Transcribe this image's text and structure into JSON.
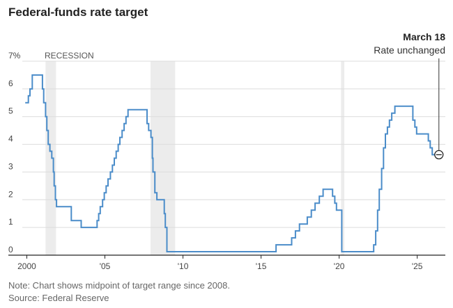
{
  "chart_data": {
    "type": "line",
    "title": "Federal-funds rate target",
    "xlabel": "",
    "ylabel": "",
    "xlim": [
      1999.8,
      2026.8
    ],
    "ylim": [
      0,
      7
    ],
    "x_ticks": [
      2000,
      2005,
      2010,
      2015,
      2020,
      2025
    ],
    "x_tick_labels": [
      "2000",
      "'05",
      "'10",
      "'15",
      "'20",
      "'25"
    ],
    "y_ticks": [
      0,
      1,
      2,
      3,
      4,
      5,
      6,
      7
    ],
    "y_tick_labels": [
      "0",
      "1",
      "2",
      "3",
      "4",
      "5",
      "6",
      "7%"
    ],
    "grid": "horizontal",
    "line_color": "#4a8cc9",
    "recession_color": "#ececec",
    "recession_label": "RECESSION",
    "recessions": [
      [
        2001.2,
        2001.87
      ],
      [
        2007.92,
        2009.5
      ],
      [
        2020.12,
        2020.33
      ]
    ],
    "annotation": {
      "date": "March 18",
      "text": "Rate unchanged",
      "x": 2026.21,
      "y": 3.625
    },
    "series": [
      {
        "points": [
          [
            1999.9,
            5.5
          ],
          [
            2000.1,
            5.5
          ],
          [
            2000.1,
            5.75
          ],
          [
            2000.2,
            5.75
          ],
          [
            2000.2,
            6.0
          ],
          [
            2000.35,
            6.0
          ],
          [
            2000.35,
            6.5
          ],
          [
            2001.0,
            6.5
          ],
          [
            2001.0,
            6.0
          ],
          [
            2001.08,
            6.0
          ],
          [
            2001.08,
            5.5
          ],
          [
            2001.2,
            5.5
          ],
          [
            2001.2,
            5.0
          ],
          [
            2001.28,
            5.0
          ],
          [
            2001.28,
            4.5
          ],
          [
            2001.37,
            4.5
          ],
          [
            2001.37,
            4.0
          ],
          [
            2001.48,
            4.0
          ],
          [
            2001.48,
            3.75
          ],
          [
            2001.6,
            3.75
          ],
          [
            2001.6,
            3.5
          ],
          [
            2001.7,
            3.5
          ],
          [
            2001.7,
            3.0
          ],
          [
            2001.75,
            3.0
          ],
          [
            2001.75,
            2.5
          ],
          [
            2001.83,
            2.5
          ],
          [
            2001.83,
            2.0
          ],
          [
            2001.9,
            2.0
          ],
          [
            2001.9,
            1.75
          ],
          [
            2002.85,
            1.75
          ],
          [
            2002.85,
            1.25
          ],
          [
            2003.48,
            1.25
          ],
          [
            2003.48,
            1.0
          ],
          [
            2004.5,
            1.0
          ],
          [
            2004.5,
            1.25
          ],
          [
            2004.6,
            1.25
          ],
          [
            2004.6,
            1.5
          ],
          [
            2004.7,
            1.5
          ],
          [
            2004.7,
            1.75
          ],
          [
            2004.85,
            1.75
          ],
          [
            2004.85,
            2.0
          ],
          [
            2004.96,
            2.0
          ],
          [
            2004.96,
            2.25
          ],
          [
            2005.08,
            2.25
          ],
          [
            2005.08,
            2.5
          ],
          [
            2005.2,
            2.5
          ],
          [
            2005.2,
            2.75
          ],
          [
            2005.35,
            2.75
          ],
          [
            2005.35,
            3.0
          ],
          [
            2005.48,
            3.0
          ],
          [
            2005.48,
            3.25
          ],
          [
            2005.6,
            3.25
          ],
          [
            2005.6,
            3.5
          ],
          [
            2005.72,
            3.5
          ],
          [
            2005.72,
            3.75
          ],
          [
            2005.85,
            3.75
          ],
          [
            2005.85,
            4.0
          ],
          [
            2005.96,
            4.0
          ],
          [
            2005.96,
            4.25
          ],
          [
            2006.1,
            4.25
          ],
          [
            2006.1,
            4.5
          ],
          [
            2006.23,
            4.5
          ],
          [
            2006.23,
            4.75
          ],
          [
            2006.35,
            4.75
          ],
          [
            2006.35,
            5.0
          ],
          [
            2006.48,
            5.0
          ],
          [
            2006.48,
            5.25
          ],
          [
            2007.7,
            5.25
          ],
          [
            2007.7,
            4.75
          ],
          [
            2007.8,
            4.75
          ],
          [
            2007.8,
            4.5
          ],
          [
            2007.95,
            4.5
          ],
          [
            2007.95,
            4.25
          ],
          [
            2008.04,
            4.25
          ],
          [
            2008.04,
            3.5
          ],
          [
            2008.08,
            3.5
          ],
          [
            2008.08,
            3.0
          ],
          [
            2008.2,
            3.0
          ],
          [
            2008.2,
            2.25
          ],
          [
            2008.33,
            2.25
          ],
          [
            2008.33,
            2.0
          ],
          [
            2008.8,
            2.0
          ],
          [
            2008.8,
            1.5
          ],
          [
            2008.87,
            1.5
          ],
          [
            2008.87,
            1.0
          ],
          [
            2008.97,
            1.0
          ],
          [
            2008.97,
            0.125
          ],
          [
            2015.96,
            0.125
          ],
          [
            2015.96,
            0.375
          ],
          [
            2016.96,
            0.375
          ],
          [
            2016.96,
            0.625
          ],
          [
            2017.2,
            0.625
          ],
          [
            2017.2,
            0.875
          ],
          [
            2017.46,
            0.875
          ],
          [
            2017.46,
            1.125
          ],
          [
            2017.96,
            1.125
          ],
          [
            2017.96,
            1.375
          ],
          [
            2018.22,
            1.375
          ],
          [
            2018.22,
            1.625
          ],
          [
            2018.46,
            1.625
          ],
          [
            2018.46,
            1.875
          ],
          [
            2018.73,
            1.875
          ],
          [
            2018.73,
            2.125
          ],
          [
            2018.97,
            2.125
          ],
          [
            2018.97,
            2.375
          ],
          [
            2019.58,
            2.375
          ],
          [
            2019.58,
            2.125
          ],
          [
            2019.72,
            2.125
          ],
          [
            2019.72,
            1.875
          ],
          [
            2019.83,
            1.875
          ],
          [
            2019.83,
            1.625
          ],
          [
            2020.17,
            1.625
          ],
          [
            2020.17,
            0.125
          ],
          [
            2022.21,
            0.125
          ],
          [
            2022.21,
            0.375
          ],
          [
            2022.34,
            0.375
          ],
          [
            2022.34,
            0.875
          ],
          [
            2022.46,
            0.875
          ],
          [
            2022.46,
            1.625
          ],
          [
            2022.57,
            1.625
          ],
          [
            2022.57,
            2.375
          ],
          [
            2022.72,
            2.375
          ],
          [
            2022.72,
            3.125
          ],
          [
            2022.84,
            3.125
          ],
          [
            2022.84,
            3.875
          ],
          [
            2022.96,
            3.875
          ],
          [
            2022.96,
            4.375
          ],
          [
            2023.09,
            4.375
          ],
          [
            2023.09,
            4.625
          ],
          [
            2023.22,
            4.625
          ],
          [
            2023.22,
            4.875
          ],
          [
            2023.37,
            4.875
          ],
          [
            2023.37,
            5.125
          ],
          [
            2023.57,
            5.125
          ],
          [
            2023.57,
            5.375
          ],
          [
            2024.72,
            5.375
          ],
          [
            2024.72,
            4.875
          ],
          [
            2024.85,
            4.875
          ],
          [
            2024.85,
            4.625
          ],
          [
            2024.96,
            4.625
          ],
          [
            2024.96,
            4.375
          ],
          [
            2025.71,
            4.375
          ],
          [
            2025.71,
            4.125
          ],
          [
            2025.83,
            4.125
          ],
          [
            2025.83,
            3.875
          ],
          [
            2025.96,
            3.875
          ],
          [
            2025.96,
            3.625
          ],
          [
            2026.21,
            3.625
          ]
        ]
      }
    ]
  },
  "footer": {
    "note": "Note: Chart shows midpoint of target range since 2008.",
    "source": "Source: Federal Reserve"
  }
}
